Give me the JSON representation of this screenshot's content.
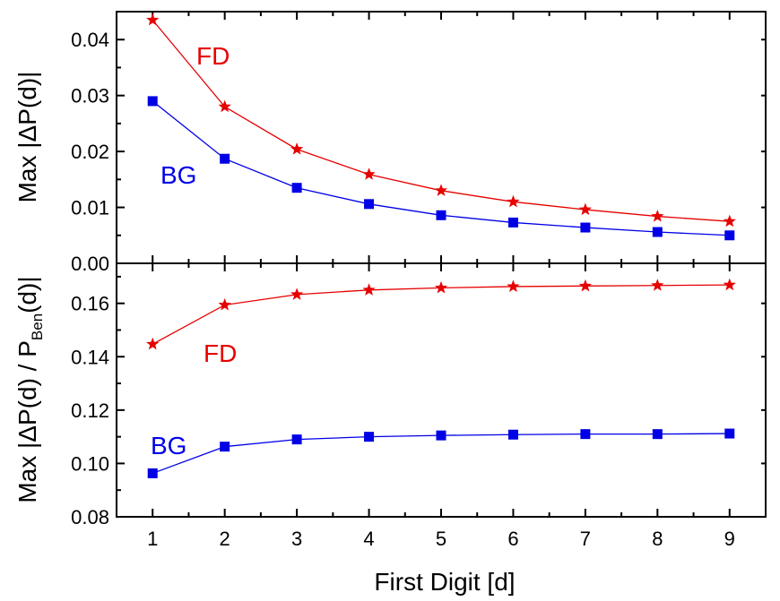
{
  "chart_data": [
    {
      "type": "line",
      "panel": "top",
      "ylabel": "Max |ΔP(d)|",
      "xlim": [
        0.5,
        9.5
      ],
      "ylim": [
        0,
        0.045
      ],
      "yticks": [
        "0.00",
        "0.01",
        "0.02",
        "0.03",
        "0.04"
      ],
      "ytick_values": [
        0,
        0.01,
        0.02,
        0.03,
        0.04
      ],
      "x": [
        1,
        2,
        3,
        4,
        5,
        6,
        7,
        8,
        9
      ],
      "series": [
        {
          "name": "FD",
          "color": "#e60000",
          "marker": "star",
          "values": [
            0.0435,
            0.028,
            0.0204,
            0.0159,
            0.013,
            0.011,
            0.0096,
            0.0084,
            0.0075
          ]
        },
        {
          "name": "BG",
          "color": "#0000e6",
          "marker": "square",
          "values": [
            0.029,
            0.0187,
            0.0135,
            0.0106,
            0.0086,
            0.0073,
            0.0064,
            0.0056,
            0.005
          ]
        }
      ]
    },
    {
      "type": "line",
      "panel": "bottom",
      "ylabel_main": "Max |ΔP(d) / P",
      "ylabel_sub": "Ben",
      "ylabel_end": "(d)|",
      "xlabel": "First Digit [d]",
      "xlim": [
        0.5,
        9.5
      ],
      "ylim": [
        0.08,
        0.175
      ],
      "yticks": [
        "0.08",
        "0.10",
        "0.12",
        "0.14",
        "0.16"
      ],
      "ytick_values": [
        0.08,
        0.1,
        0.12,
        0.14,
        0.16
      ],
      "xticks": [
        "1",
        "2",
        "3",
        "4",
        "5",
        "6",
        "7",
        "8",
        "9"
      ],
      "x": [
        1,
        2,
        3,
        4,
        5,
        6,
        7,
        8,
        9
      ],
      "series": [
        {
          "name": "FD",
          "color": "#e60000",
          "marker": "star",
          "values": [
            0.1447,
            0.1594,
            0.1633,
            0.165,
            0.1658,
            0.1663,
            0.1665,
            0.1667,
            0.1669
          ]
        },
        {
          "name": "BG",
          "color": "#0000e6",
          "marker": "square",
          "values": [
            0.0963,
            0.1063,
            0.109,
            0.11,
            0.1105,
            0.1108,
            0.111,
            0.111,
            0.1112
          ]
        }
      ]
    }
  ]
}
